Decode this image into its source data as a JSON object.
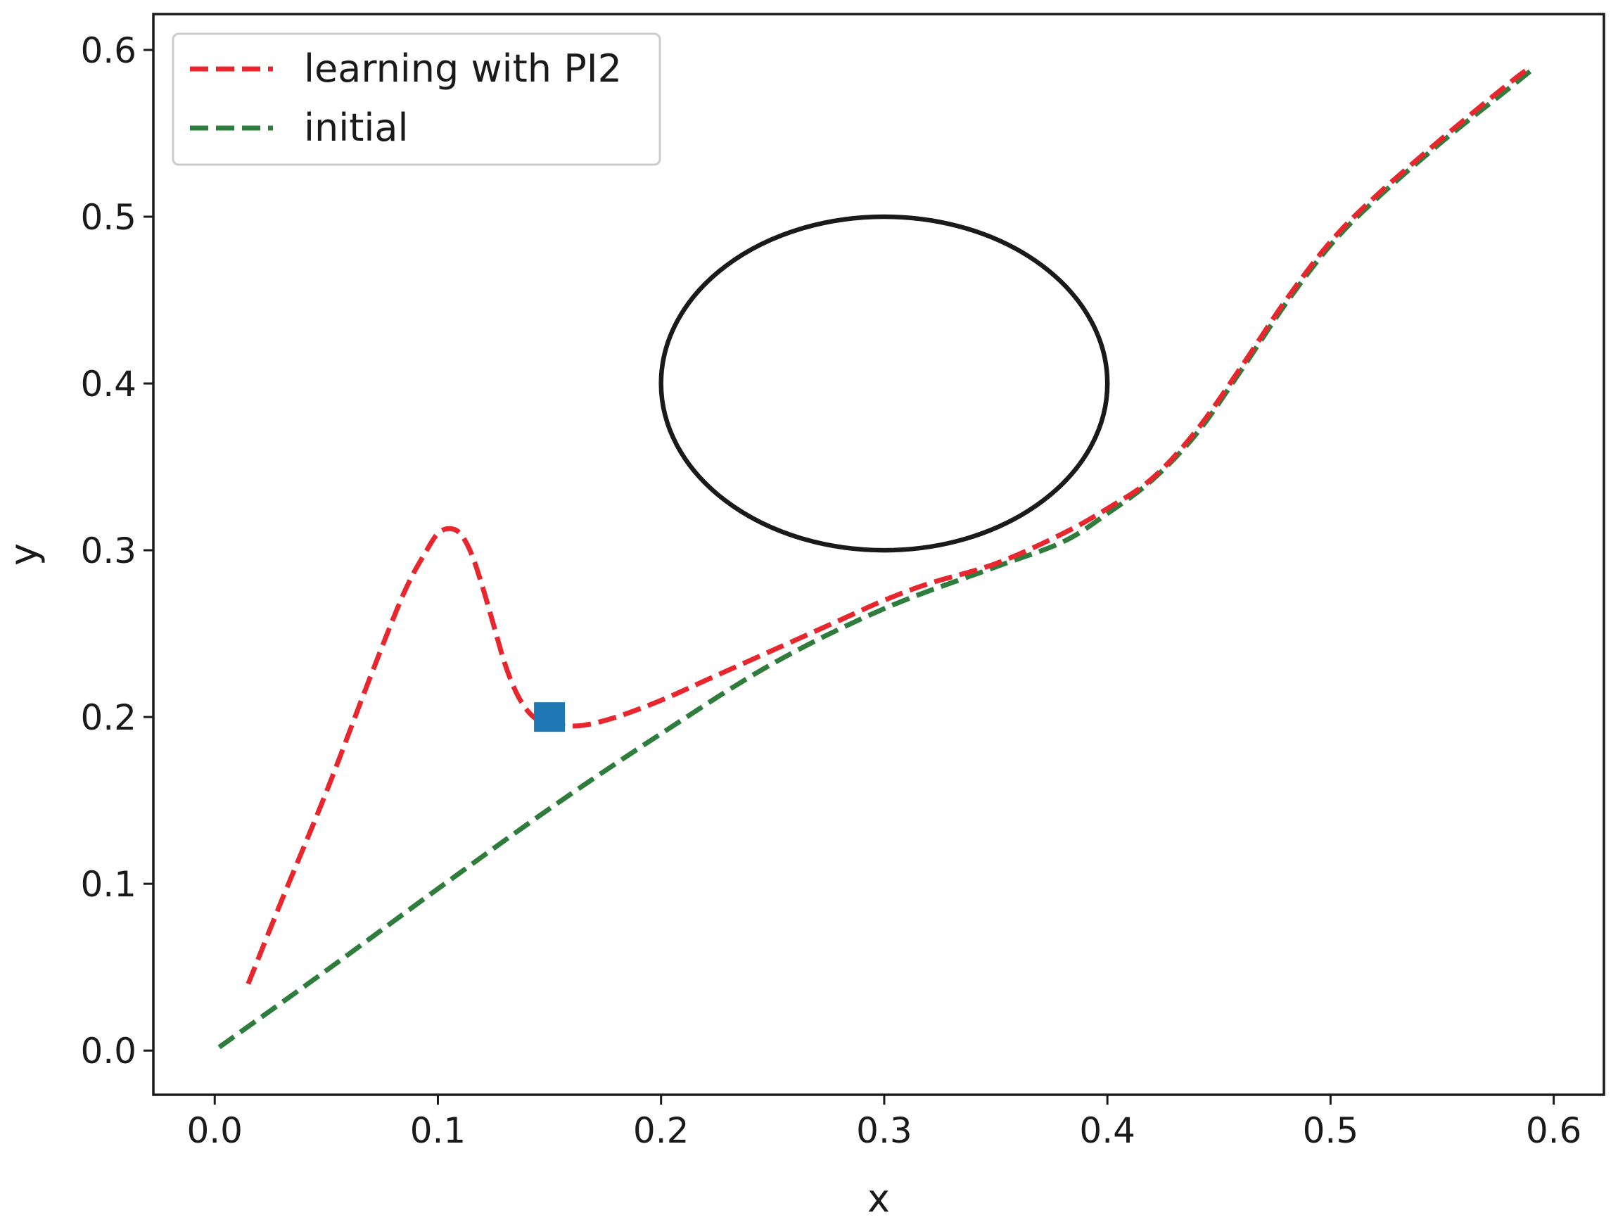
{
  "chart_data": {
    "type": "line",
    "xlabel": "x",
    "ylabel": "y",
    "xlim": [
      -0.0275,
      0.6225
    ],
    "ylim": [
      -0.0265,
      0.6215
    ],
    "xticks": [
      0.0,
      0.1,
      0.2,
      0.3,
      0.4,
      0.5,
      0.6
    ],
    "yticks": [
      0.0,
      0.1,
      0.2,
      0.3,
      0.4,
      0.5,
      0.6
    ],
    "xtick_labels": [
      "0.0",
      "0.1",
      "0.2",
      "0.3",
      "0.4",
      "0.5",
      "0.6"
    ],
    "ytick_labels": [
      "0.0",
      "0.1",
      "0.2",
      "0.3",
      "0.4",
      "0.5",
      "0.6"
    ],
    "grid": false,
    "legend_position": "top-left",
    "series": [
      {
        "name": "learning with PI2",
        "color": "#e8262d",
        "style": "dashed",
        "x": [
          0.015,
          0.03,
          0.05,
          0.07,
          0.085,
          0.095,
          0.1,
          0.105,
          0.11,
          0.115,
          0.12,
          0.125,
          0.13,
          0.135,
          0.14,
          0.145,
          0.15,
          0.155,
          0.165,
          0.18,
          0.2,
          0.22,
          0.25,
          0.28,
          0.3,
          0.32,
          0.35,
          0.38,
          0.4,
          0.42,
          0.44,
          0.46,
          0.48,
          0.5,
          0.52,
          0.55,
          0.58,
          0.59
        ],
        "y": [
          0.04,
          0.09,
          0.155,
          0.225,
          0.275,
          0.3,
          0.31,
          0.313,
          0.31,
          0.298,
          0.278,
          0.255,
          0.232,
          0.215,
          0.204,
          0.198,
          0.196,
          0.195,
          0.195,
          0.2,
          0.21,
          0.222,
          0.24,
          0.258,
          0.27,
          0.28,
          0.292,
          0.31,
          0.325,
          0.343,
          0.372,
          0.41,
          0.45,
          0.485,
          0.512,
          0.547,
          0.58,
          0.59
        ]
      },
      {
        "name": "initial",
        "color": "#2e7d3c",
        "style": "dashed",
        "x": [
          0.002,
          0.05,
          0.1,
          0.15,
          0.2,
          0.25,
          0.3,
          0.35,
          0.38,
          0.4,
          0.42,
          0.44,
          0.46,
          0.48,
          0.5,
          0.52,
          0.55,
          0.58,
          0.592
        ],
        "y": [
          0.002,
          0.048,
          0.097,
          0.145,
          0.19,
          0.232,
          0.265,
          0.29,
          0.305,
          0.322,
          0.342,
          0.37,
          0.408,
          0.448,
          0.483,
          0.51,
          0.545,
          0.577,
          0.59
        ]
      }
    ],
    "obstacle": {
      "type": "ellipse",
      "center": [
        0.3,
        0.4
      ],
      "radius_x": 0.1,
      "radius_y": 0.1,
      "color": "#1a1a1a"
    },
    "via_point": {
      "x": 0.15,
      "y": 0.2,
      "color": "#1f77b4",
      "marker": "square"
    }
  }
}
